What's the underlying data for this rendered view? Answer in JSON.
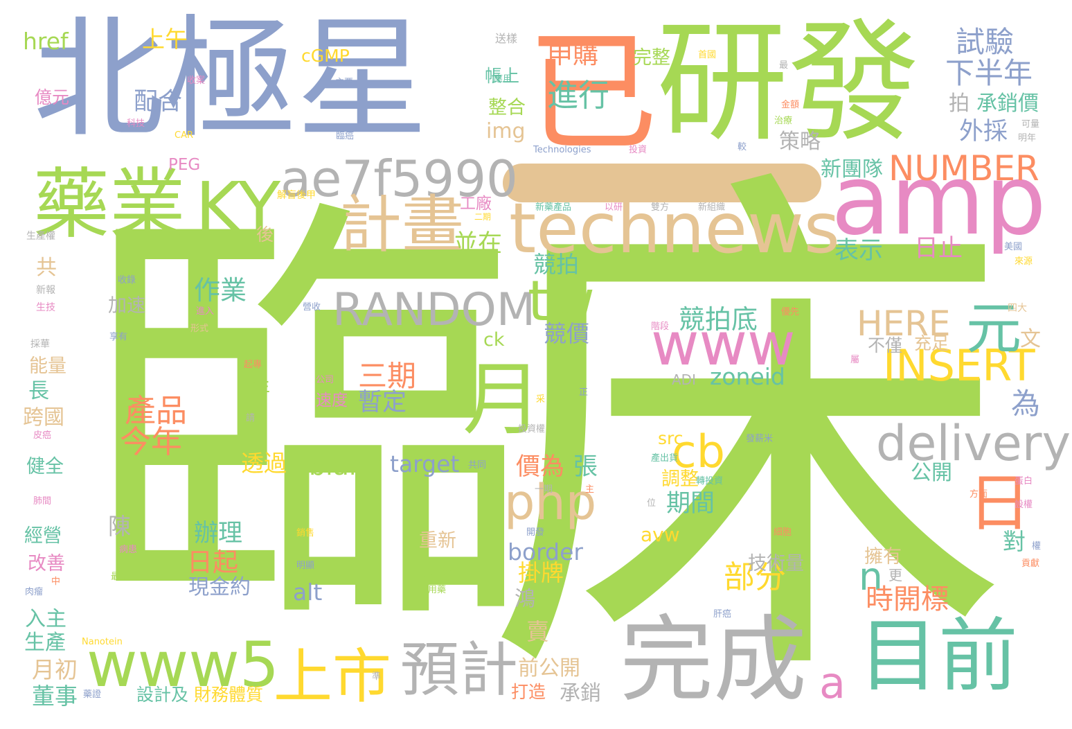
{
  "palette": {
    "green": "#a6d854",
    "blue": "#8da0cb",
    "orange": "#fc8d62",
    "pink": "#e78ac3",
    "teal": "#66c2a5",
    "yellow": "#ffd92f",
    "tan": "#e5c494",
    "gray": "#b3b3b3",
    "background": "#ffffff"
  },
  "large_words": [
    {
      "text": "臨",
      "color": "green"
    },
    {
      "text": "床",
      "color": "green"
    },
    {
      "text": "北極星",
      "color": "blue"
    },
    {
      "text": "已",
      "color": "orange"
    },
    {
      "text": "研發",
      "color": "green"
    },
    {
      "text": "amp",
      "color": "pink"
    },
    {
      "text": "藥業",
      "color": "green"
    },
    {
      "text": "KY",
      "color": "green"
    },
    {
      "text": "ae7f5990",
      "color": "gray"
    },
    {
      "text": "technews",
      "color": "tan"
    },
    {
      "text": "計畫",
      "color": "tan"
    },
    {
      "text": "RANDOM",
      "color": "gray"
    },
    {
      "text": "tw",
      "color": "green"
    },
    {
      "text": "www",
      "color": "pink"
    },
    {
      "text": "月",
      "color": "green"
    },
    {
      "text": "完成",
      "color": "gray"
    },
    {
      "text": "目前",
      "color": "teal"
    },
    {
      "text": "www5",
      "color": "green"
    },
    {
      "text": "上市",
      "color": "yellow"
    },
    {
      "text": "預計",
      "color": "gray"
    },
    {
      "text": "delivery",
      "color": "gray"
    },
    {
      "text": "INSERT",
      "color": "yellow"
    },
    {
      "text": "日",
      "color": "orange"
    },
    {
      "text": "cb",
      "color": "yellow"
    },
    {
      "text": "php",
      "color": "tan"
    },
    {
      "text": "元",
      "color": "teal"
    },
    {
      "text": "HERE",
      "color": "tan"
    },
    {
      "text": "NUMBER",
      "color": "orange"
    }
  ],
  "medium_words": [
    {
      "text": "進行",
      "color": "teal"
    },
    {
      "text": "申購",
      "color": "orange"
    },
    {
      "text": "試驗",
      "color": "blue"
    },
    {
      "text": "下半年",
      "color": "blue"
    },
    {
      "text": "三期",
      "color": "orange"
    },
    {
      "text": "暫定",
      "color": "blue"
    },
    {
      "text": "產品",
      "color": "orange"
    },
    {
      "text": "今年",
      "color": "orange"
    },
    {
      "text": "部分",
      "color": "yellow"
    },
    {
      "text": "n",
      "color": "teal"
    },
    {
      "text": "a",
      "color": "pink"
    },
    {
      "text": "時開標",
      "color": "orange"
    },
    {
      "text": "為",
      "color": "blue"
    },
    {
      "text": "zoneid",
      "color": "teal"
    },
    {
      "text": "blank",
      "color": "green"
    },
    {
      "text": "target",
      "color": "blue"
    },
    {
      "text": "作業",
      "color": "teal"
    },
    {
      "text": "競拍底",
      "color": "teal"
    },
    {
      "text": "競價",
      "color": "blue"
    },
    {
      "text": "競拍",
      "color": "teal"
    },
    {
      "text": "並在",
      "color": "green"
    },
    {
      "text": "外採",
      "color": "blue"
    },
    {
      "text": "承銷價",
      "color": "teal"
    },
    {
      "text": "配合",
      "color": "blue"
    },
    {
      "text": "上午",
      "color": "yellow"
    },
    {
      "text": "href",
      "color": "green"
    },
    {
      "text": "日止",
      "color": "pink"
    },
    {
      "text": "表示",
      "color": "teal"
    },
    {
      "text": "新團隊",
      "color": "teal"
    },
    {
      "text": "策略",
      "color": "gray"
    },
    {
      "text": "拍",
      "color": "gray"
    },
    {
      "text": "價為",
      "color": "orange"
    },
    {
      "text": "張",
      "color": "teal"
    },
    {
      "text": "期間",
      "color": "teal"
    },
    {
      "text": "調整",
      "color": "yellow"
    },
    {
      "text": "公開",
      "color": "teal"
    },
    {
      "text": "日起",
      "color": "orange"
    },
    {
      "text": "辦理",
      "color": "teal"
    },
    {
      "text": "掛牌",
      "color": "yellow"
    },
    {
      "text": "border",
      "color": "blue"
    },
    {
      "text": "alt",
      "color": "blue"
    },
    {
      "text": "avw",
      "color": "yellow"
    },
    {
      "text": "src",
      "color": "yellow"
    },
    {
      "text": "img",
      "color": "tan"
    },
    {
      "text": "ck",
      "color": "green"
    },
    {
      "text": "cGMP",
      "color": "yellow"
    },
    {
      "text": "完整",
      "color": "green"
    },
    {
      "text": "整合",
      "color": "green"
    },
    {
      "text": "帳上",
      "color": "teal"
    },
    {
      "text": "工廠",
      "color": "pink"
    },
    {
      "text": "加速",
      "color": "gray"
    },
    {
      "text": "年",
      "color": "green"
    },
    {
      "text": "透過",
      "color": "yellow"
    },
    {
      "text": "陳",
      "color": "gray"
    },
    {
      "text": "現金約",
      "color": "blue"
    },
    {
      "text": "技術量",
      "color": "gray"
    },
    {
      "text": "擁有",
      "color": "tan"
    },
    {
      "text": "鴻",
      "color": "gray"
    },
    {
      "text": "賣",
      "color": "tan"
    },
    {
      "text": "對",
      "color": "teal"
    },
    {
      "text": "文",
      "color": "tan"
    },
    {
      "text": "充足",
      "color": "tan"
    },
    {
      "text": "不僅",
      "color": "gray"
    },
    {
      "text": "重新",
      "color": "tan"
    },
    {
      "text": "團隊",
      "color": "green"
    },
    {
      "text": "前公開",
      "color": "tan"
    },
    {
      "text": "打造",
      "color": "orange"
    },
    {
      "text": "承銷",
      "color": "gray"
    },
    {
      "text": "財務體質",
      "color": "yellow"
    },
    {
      "text": "設計及",
      "color": "teal"
    },
    {
      "text": "董事",
      "color": "teal"
    },
    {
      "text": "月初",
      "color": "tan"
    },
    {
      "text": "生產",
      "color": "teal"
    },
    {
      "text": "入主",
      "color": "teal"
    },
    {
      "text": "改善",
      "color": "pink"
    },
    {
      "text": "經營",
      "color": "teal"
    },
    {
      "text": "健全",
      "color": "teal"
    },
    {
      "text": "跨國",
      "color": "tan"
    },
    {
      "text": "長",
      "color": "teal"
    },
    {
      "text": "能量",
      "color": "tan"
    },
    {
      "text": "共",
      "color": "tan"
    },
    {
      "text": "後",
      "color": "tan"
    },
    {
      "text": "速度",
      "color": "pink"
    },
    {
      "text": "億元",
      "color": "pink"
    },
    {
      "text": "PEG",
      "color": "pink"
    },
    {
      "text": "更",
      "color": "gray"
    },
    {
      "text": "ADI",
      "color": "gray"
    }
  ],
  "small_words": [
    {
      "text": "送樣",
      "color": "gray"
    },
    {
      "text": "首國",
      "color": "yellow"
    },
    {
      "text": "最",
      "color": "gray"
    },
    {
      "text": "收案",
      "color": "pink"
    },
    {
      "text": "主要",
      "color": "blue"
    },
    {
      "text": "應用",
      "color": "teal"
    },
    {
      "text": "科技",
      "color": "pink"
    },
    {
      "text": "CAR",
      "color": "yellow"
    },
    {
      "text": "臨癌",
      "color": "blue"
    },
    {
      "text": "金額",
      "color": "orange"
    },
    {
      "text": "治療",
      "color": "green"
    },
    {
      "text": "可量",
      "color": "gray"
    },
    {
      "text": "明年",
      "color": "gray"
    },
    {
      "text": "較",
      "color": "blue"
    },
    {
      "text": "Technologies",
      "color": "blue"
    },
    {
      "text": "投資",
      "color": "pink"
    },
    {
      "text": "解盲後甲",
      "color": "yellow"
    },
    {
      "text": "二期",
      "color": "yellow"
    },
    {
      "text": "新藥產品",
      "color": "teal"
    },
    {
      "text": "以研",
      "color": "pink"
    },
    {
      "text": "雙方",
      "color": "gray"
    },
    {
      "text": "新組織",
      "color": "gray"
    },
    {
      "text": "利金",
      "color": "green"
    },
    {
      "text": "生產權",
      "color": "gray"
    },
    {
      "text": "美國",
      "color": "blue"
    },
    {
      "text": "來源",
      "color": "yellow"
    },
    {
      "text": "收錄",
      "color": "blue"
    },
    {
      "text": "新報",
      "color": "gray"
    },
    {
      "text": "生技",
      "color": "pink"
    },
    {
      "text": "進入",
      "color": "pink"
    },
    {
      "text": "營收",
      "color": "blue"
    },
    {
      "text": "優先",
      "color": "orange"
    },
    {
      "text": "四大",
      "color": "tan"
    },
    {
      "text": "階段",
      "color": "pink"
    },
    {
      "text": "形式",
      "color": "tan"
    },
    {
      "text": "享有",
      "color": "blue"
    },
    {
      "text": "採華",
      "color": "gray"
    },
    {
      "text": "起專",
      "color": "orange"
    },
    {
      "text": "公司",
      "color": "pink"
    },
    {
      "text": "采",
      "color": "yellow"
    },
    {
      "text": "正",
      "color": "blue"
    },
    {
      "text": "請",
      "color": "gray"
    },
    {
      "text": "投資權",
      "color": "gray"
    },
    {
      "text": "發薪米",
      "color": "blue"
    },
    {
      "text": "產出貨",
      "color": "teal"
    },
    {
      "text": "轉投資",
      "color": "teal"
    },
    {
      "text": "皮癌",
      "color": "pink"
    },
    {
      "text": "共同",
      "color": "blue"
    },
    {
      "text": "肺間",
      "color": "pink"
    },
    {
      "text": "一期",
      "color": "gray"
    },
    {
      "text": "主",
      "color": "orange"
    },
    {
      "text": "位",
      "color": "gray"
    },
    {
      "text": "蛋白",
      "color": "pink"
    },
    {
      "text": "方面",
      "color": "orange"
    },
    {
      "text": "設權",
      "color": "pink"
    },
    {
      "text": "銷售",
      "color": "yellow"
    },
    {
      "text": "開發",
      "color": "blue"
    },
    {
      "text": "細胞",
      "color": "orange"
    },
    {
      "text": "病患",
      "color": "pink"
    },
    {
      "text": "明顯",
      "color": "blue"
    },
    {
      "text": "權",
      "color": "blue"
    },
    {
      "text": "貢獻",
      "color": "orange"
    },
    {
      "text": "最快",
      "color": "green"
    },
    {
      "text": "肉瘤",
      "color": "blue"
    },
    {
      "text": "中",
      "color": "orange"
    },
    {
      "text": "一用藥",
      "color": "green"
    },
    {
      "text": "肝癌",
      "color": "blue"
    },
    {
      "text": "Nanotein",
      "color": "yellow"
    },
    {
      "text": "藥證",
      "color": "blue"
    },
    {
      "text": "準",
      "color": "gray"
    },
    {
      "text": "屬",
      "color": "pink"
    }
  ]
}
